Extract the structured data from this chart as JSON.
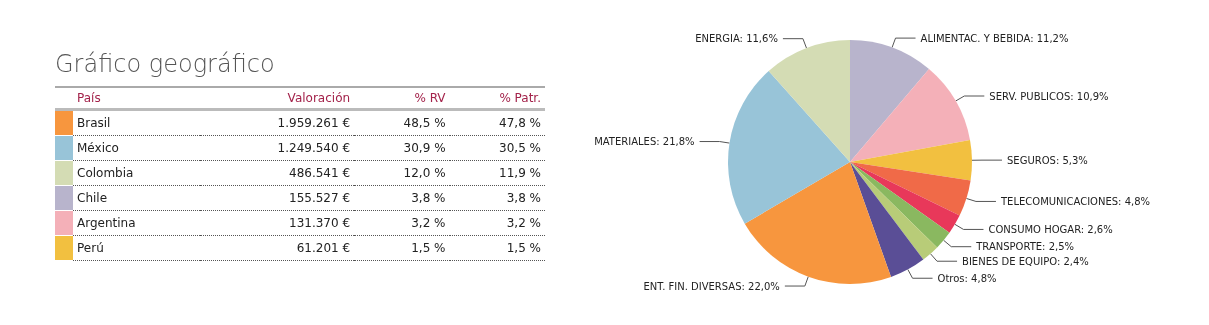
{
  "chart_data": [
    {
      "type": "other",
      "title": "Gráfico geográfico",
      "legend_title": "País",
      "categories": [
        "Brasil",
        "México",
        "Colombia",
        "Chile",
        "Argentina",
        "Perú"
      ],
      "colors": [
        "#f7963e",
        "#98c4d8",
        "#d4dcb4",
        "#b8b4cc",
        "#f4b0b8",
        "#f2c040"
      ],
      "series": [
        {
          "name": "Valoración",
          "values": [
            1959261,
            1249540,
            486541,
            155527,
            131370,
            61201
          ],
          "value_labels": [
            "1.959.261 €",
            "1.249.540 €",
            "486.541 €",
            "155.527 €",
            "131.370 €",
            "61.201 €"
          ]
        },
        {
          "name": "% RV",
          "values": [
            48.5,
            30.9,
            12.0,
            3.8,
            3.2,
            1.5
          ],
          "value_labels": [
            "48,5 %",
            "30,9 %",
            "12,0 %",
            "3,8 %",
            "3,2 %",
            "1,5 %"
          ]
        },
        {
          "name": "% Patr.",
          "values": [
            47.8,
            30.5,
            11.9,
            3.8,
            3.2,
            1.5
          ],
          "value_labels": [
            "47,8 %",
            "30,5 %",
            "11,9 %",
            "3,8 %",
            "3,2 %",
            "1,5 %"
          ]
        }
      ]
    },
    {
      "type": "pie",
      "categories": [
        "ALIMENTAC. Y BEBIDA",
        "SERV. PUBLICOS",
        "SEGUROS",
        "TELECOMUNICACIONES",
        "CONSUMO HOGAR",
        "TRANSPORTE",
        "BIENES DE EQUIPO",
        "Otros",
        "ENT. FIN. DIVERSAS",
        "MATERIALES",
        "ENERGIA"
      ],
      "values": [
        11.2,
        10.9,
        5.3,
        4.8,
        2.6,
        2.5,
        2.4,
        4.8,
        22.0,
        21.8,
        11.6
      ],
      "value_labels": [
        "11,2%",
        "10,9%",
        "5,3%",
        "4,8%",
        "2,6%",
        "2,5%",
        "2,4%",
        "4,8%",
        "22,0%",
        "21,8%",
        "11,6%"
      ],
      "colors": [
        "#b8b4cc",
        "#f4b0b8",
        "#f2c040",
        "#f06a48",
        "#e8385a",
        "#8ab860",
        "#b8cc78",
        "#5a4e96",
        "#f7963e",
        "#98c4d8",
        "#d4dcb4"
      ],
      "legend": false
    }
  ]
}
